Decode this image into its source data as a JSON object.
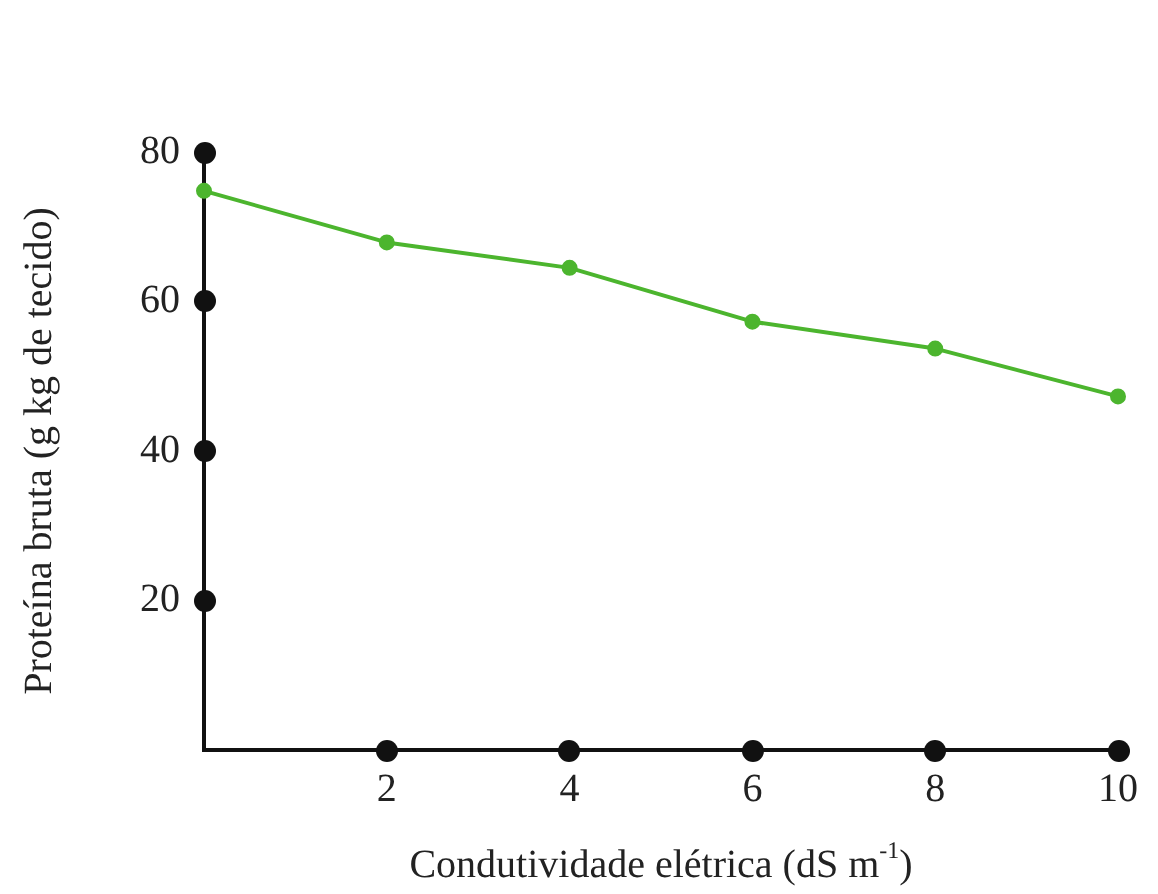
{
  "chart_data": {
    "type": "line",
    "xlabel": "Condutividade elétrica (dS m$^{-1}$)",
    "ylabel": "Proteína bruta (g kg de tecido)",
    "x": [
      0,
      2,
      4,
      6,
      8,
      10
    ],
    "series": [
      {
        "color": "#4cb52e",
        "values": [
          74.8,
          67.9,
          64.5,
          57.3,
          53.7,
          47.3
        ]
      }
    ],
    "xlim": [
      0,
      10
    ],
    "xticks": [
      2,
      4,
      6,
      8,
      10
    ],
    "ylim": [
      0,
      80
    ],
    "yticks": [
      20,
      40,
      60,
      80
    ],
    "marker": "circle",
    "line_style": "solid",
    "grid": false,
    "legend": false
  }
}
